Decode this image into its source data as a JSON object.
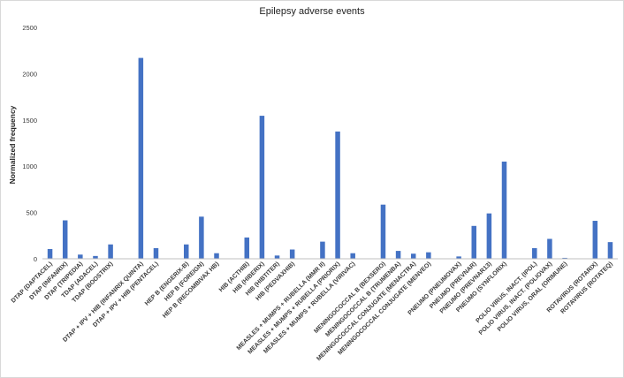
{
  "chart_data": {
    "type": "bar",
    "title": "Epilepsy adverse events",
    "xlabel": "",
    "ylabel": "Normalized frequency",
    "ylim": [
      0,
      2500
    ],
    "yticks": [
      0,
      500,
      1000,
      1500,
      2000,
      2500
    ],
    "grid": false,
    "legend": "none",
    "bar_color": "#4472c4",
    "categories": [
      "DTAP (DAPTACEL)",
      "DTAP (INFANRIX)",
      "DTAP (TRIPEDIA)",
      "TDAP (ADACEL)",
      "TDAP (BOOSTRIX)",
      "",
      "DTAP + IPV + HIB (INFANRIX QUINTA)",
      "DTAP + IPV + HIB (PENTACEL)",
      "",
      "HEP B (ENGERIX-B)",
      "HEP B (FOREIGN)",
      "HEP B (RECOMBIVAX HB)",
      "",
      "HIB (ACTHIB)",
      "HIB (HIBERIX)",
      "HIB (HIBTITER)",
      "HIB (PEDVAXHIB)",
      "",
      "MEASLES + MUMPS + RUBELLA (MMR II)",
      "MEASLES + MUMPS + RUBELLA (PRIORIX)",
      "MEASLES + MUMPS + RUBELLA (VIRIVAC)",
      "",
      "MENINGOCOCCAL B (BEXSERO)",
      "MENINGOCOCCAL B (TRUMENBA)",
      "MENINGOCOCCAL CONJUGATE (MENACTRA)",
      "MENINGOCOCCAL CONJUGATE (MENVEO)",
      "",
      "PNEUMO (PNEUMOVAX)",
      "PNEUMO (PREVNAR)",
      "PNEUMO (PREVNAR13)",
      "PNEUMO (SYNFLORIX)",
      "",
      "POLIO VIRUS, INACT. (IPOL)",
      "POLIO VIRUS, INACT. (POLIOVAX)",
      "POLIO VIRUS, ORAL (ORIMUNE)",
      "",
      "ROTAVIRUS (ROTARIX)",
      "ROTAVIRUS (ROTATEQ)"
    ],
    "values": [
      105,
      415,
      45,
      30,
      155,
      0,
      2170,
      115,
      0,
      155,
      455,
      60,
      0,
      230,
      1545,
      35,
      100,
      0,
      185,
      1375,
      60,
      0,
      585,
      85,
      55,
      70,
      0,
      25,
      355,
      490,
      1050,
      0,
      115,
      215,
      10,
      0,
      410,
      180
    ]
  }
}
